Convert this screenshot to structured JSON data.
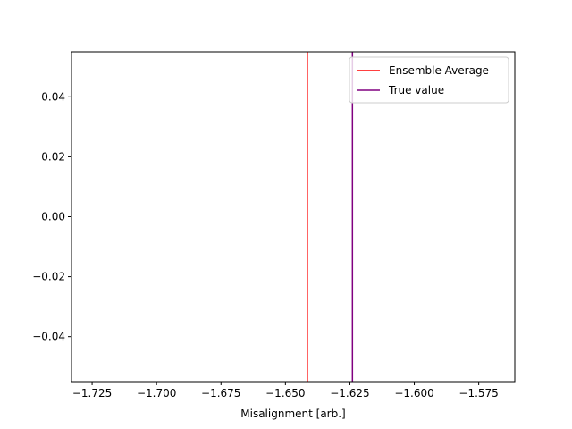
{
  "chart_data": {
    "type": "line",
    "title": "",
    "xlabel": "Misalignment [arb.]",
    "ylabel": "",
    "xlim": [
      -1.733,
      -1.561
    ],
    "ylim": [
      -0.055,
      0.055
    ],
    "xticks": [
      -1.725,
      -1.7,
      -1.675,
      -1.65,
      -1.625,
      -1.6,
      -1.575
    ],
    "xtick_labels": [
      "−1.725",
      "−1.700",
      "−1.675",
      "−1.650",
      "−1.625",
      "−1.600",
      "−1.575"
    ],
    "yticks": [
      0.04,
      0.02,
      0.0,
      -0.02,
      -0.04
    ],
    "ytick_labels": [
      "0.04",
      "0.02",
      "0.00",
      "−0.02",
      "−0.04"
    ],
    "grid": false,
    "legend_position": "upper right",
    "series": [
      {
        "name": "Ensemble Average",
        "kind": "vline",
        "x": -1.6415,
        "color": "#ff0000"
      },
      {
        "name": "True value",
        "kind": "vline",
        "x": -1.624,
        "color": "#800080"
      }
    ]
  }
}
